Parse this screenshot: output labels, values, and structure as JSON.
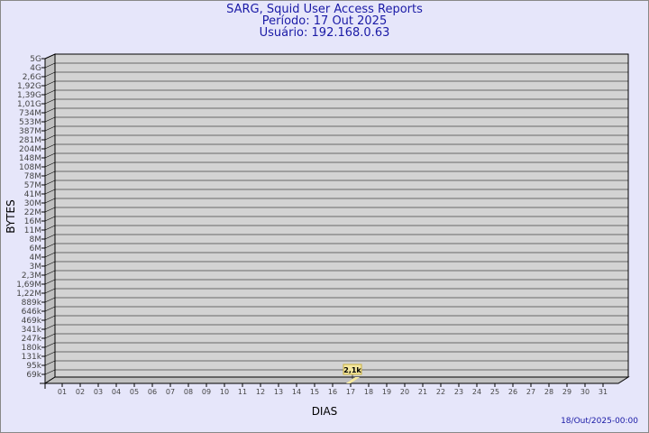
{
  "title": "SARG, Squid User Access Reports",
  "period": "Período: 17 Out 2025",
  "user": "Usuário: 192.168.0.63",
  "footer": "18/Out/2025-00:00",
  "colors": {
    "background": "#e6e6fa",
    "plot": "#d3d3d3",
    "title": "#1a1aa6",
    "bar": "#f5e8a0"
  },
  "chart_data": {
    "type": "bar",
    "xlabel": "DIAS",
    "ylabel": "BYTES",
    "y_scale": "log",
    "y_ticks": [
      "5G",
      "4G",
      "2,6G",
      "1,92G",
      "1,39G",
      "1,01G",
      "734M",
      "533M",
      "387M",
      "281M",
      "204M",
      "148M",
      "108M",
      "78M",
      "57M",
      "41M",
      "30M",
      "22M",
      "16M",
      "11M",
      "8M",
      "6M",
      "4M",
      "3M",
      "2,3M",
      "1,69M",
      "1,22M",
      "889k",
      "646k",
      "469k",
      "341k",
      "247k",
      "180k",
      "131k",
      "95k",
      "69k"
    ],
    "categories": [
      "01",
      "02",
      "03",
      "04",
      "05",
      "06",
      "07",
      "08",
      "09",
      "10",
      "11",
      "12",
      "13",
      "14",
      "15",
      "16",
      "17",
      "18",
      "19",
      "20",
      "21",
      "22",
      "23",
      "24",
      "25",
      "26",
      "27",
      "28",
      "29",
      "30",
      "31"
    ],
    "values": [
      {
        "day": "17",
        "label": "2,1k"
      }
    ],
    "grid": true
  }
}
